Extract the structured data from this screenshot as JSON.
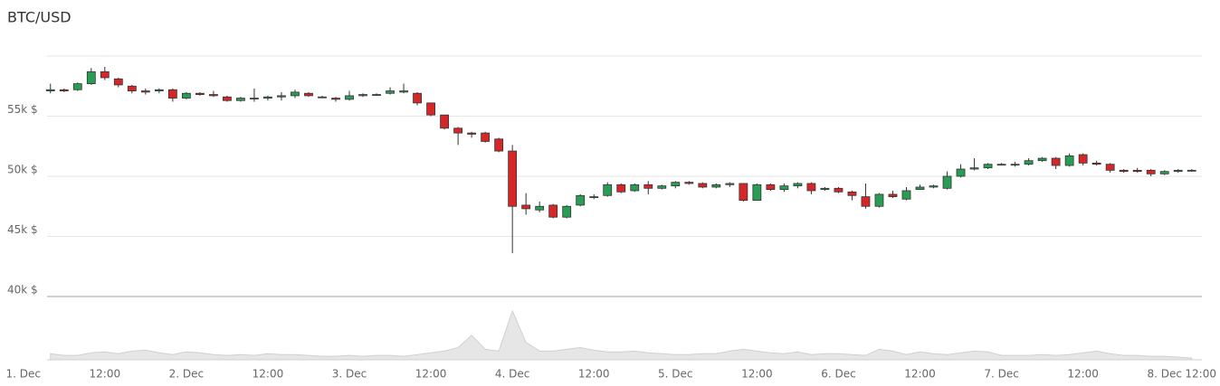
{
  "chart_data": {
    "type": "candlestick",
    "title": "BTC/USD",
    "up_color": "#2a9d55",
    "down_color": "#d62728",
    "grid": true,
    "xlim": [
      3.5,
      173.5
    ],
    "xticks": [
      {
        "value": 0,
        "label": "1. Dec"
      },
      {
        "value": 12,
        "label": "12:00"
      },
      {
        "value": 24,
        "label": "2. Dec"
      },
      {
        "value": 36,
        "label": "12:00"
      },
      {
        "value": 48,
        "label": "3. Dec"
      },
      {
        "value": 60,
        "label": "12:00"
      },
      {
        "value": 72,
        "label": "4. Dec"
      },
      {
        "value": 84,
        "label": "12:00"
      },
      {
        "value": 96,
        "label": "5. Dec"
      },
      {
        "value": 108,
        "label": "12:00"
      },
      {
        "value": 120,
        "label": "6. Dec"
      },
      {
        "value": 132,
        "label": "12:00"
      },
      {
        "value": 144,
        "label": "7. Dec"
      },
      {
        "value": 156,
        "label": "12:00"
      },
      {
        "value": 168,
        "label": "8. Dec"
      },
      {
        "value": 180,
        "label": "12:00"
      }
    ],
    "ylim": [
      40000,
      60000
    ],
    "yticks": [
      {
        "value": 40000,
        "label": "40k $"
      },
      {
        "value": 45000,
        "label": "45k $"
      },
      {
        "value": 50000,
        "label": "50k $"
      },
      {
        "value": 55000,
        "label": "55k $"
      }
    ],
    "volume_ylim": [
      0,
      60
    ],
    "x": [
      4,
      6,
      8,
      10,
      12,
      14,
      16,
      18,
      20,
      22,
      24,
      26,
      28,
      30,
      32,
      34,
      36,
      38,
      40,
      42,
      44,
      46,
      48,
      50,
      52,
      54,
      56,
      58,
      60,
      62,
      64,
      66,
      68,
      70,
      72,
      74,
      76,
      78,
      80,
      82,
      84,
      86,
      88,
      90,
      92,
      94,
      96,
      98,
      100,
      102,
      104,
      106,
      108,
      110,
      112,
      114,
      116,
      118,
      120,
      122,
      124,
      126,
      128,
      130,
      132,
      134,
      136,
      138,
      140,
      142,
      144,
      146,
      148,
      150,
      152,
      154,
      156,
      158,
      160,
      162,
      164,
      166,
      168,
      170,
      172
    ],
    "open": [
      57100,
      57200,
      57200,
      57700,
      58700,
      58100,
      57500,
      57100,
      57100,
      57200,
      56500,
      56900,
      56800,
      56600,
      56300,
      56500,
      56500,
      56600,
      56700,
      56900,
      56600,
      56500,
      56400,
      56700,
      56800,
      56900,
      57000,
      56900,
      56100,
      55100,
      54000,
      53600,
      53600,
      53100,
      52100,
      47600,
      47200,
      47600,
      46600,
      47600,
      48300,
      48400,
      49300,
      48800,
      49300,
      49000,
      49200,
      49500,
      49400,
      49100,
      49300,
      49400,
      48000,
      49300,
      48900,
      49200,
      49400,
      48900,
      49000,
      48700,
      48300,
      47500,
      48500,
      48100,
      48900,
      49100,
      49000,
      50000,
      50600,
      50700,
      51000,
      51000,
      51000,
      51300,
      51500,
      50900,
      51800,
      51100,
      51000,
      50500,
      50500,
      50500,
      50200,
      50400,
      50500
    ],
    "high": [
      57700,
      57300,
      57800,
      59000,
      59100,
      58200,
      57600,
      57300,
      57300,
      57300,
      57000,
      57000,
      57100,
      56700,
      56600,
      57300,
      56700,
      57000,
      57200,
      57000,
      56700,
      56600,
      57100,
      56900,
      56900,
      57400,
      57700,
      57000,
      56100,
      55100,
      54100,
      53700,
      53700,
      53200,
      52600,
      48600,
      47900,
      47700,
      47600,
      48500,
      48500,
      49500,
      49400,
      49400,
      49600,
      49300,
      49600,
      49600,
      49500,
      49400,
      49500,
      49400,
      49400,
      49400,
      49400,
      49500,
      49500,
      49100,
      49100,
      48800,
      49400,
      48600,
      48800,
      49100,
      49300,
      49300,
      50400,
      51000,
      51500,
      51100,
      51100,
      51200,
      51500,
      51600,
      51600,
      51900,
      51900,
      51300,
      51100,
      50600,
      50700,
      50600,
      50500,
      50600,
      50600
    ],
    "low": [
      56900,
      57000,
      57100,
      57600,
      58000,
      57400,
      56900,
      56800,
      56900,
      56200,
      56400,
      56700,
      56600,
      56200,
      56200,
      56200,
      56300,
      56300,
      56500,
      56600,
      56500,
      56200,
      56300,
      56600,
      56700,
      56800,
      56900,
      55900,
      55000,
      53900,
      52600,
      53200,
      52800,
      52000,
      43600,
      46800,
      47000,
      46500,
      46500,
      47500,
      48100,
      48300,
      48600,
      48700,
      48500,
      48900,
      49000,
      49300,
      49000,
      49000,
      49100,
      47900,
      48000,
      48800,
      48700,
      49000,
      48500,
      48800,
      48600,
      48000,
      47300,
      47400,
      48200,
      48000,
      48900,
      49000,
      48900,
      49900,
      50500,
      50600,
      50900,
      50800,
      50900,
      51200,
      50600,
      50800,
      50900,
      50900,
      50300,
      50300,
      50300,
      50000,
      50100,
      50300,
      50400
    ],
    "close": [
      57200,
      57100,
      57700,
      58700,
      58200,
      57600,
      57100,
      57000,
      57200,
      56500,
      56900,
      56800,
      56700,
      56300,
      56500,
      56500,
      56600,
      56700,
      57000,
      56700,
      56600,
      56400,
      56700,
      56800,
      56800,
      57100,
      57100,
      56100,
      55100,
      54000,
      53600,
      53500,
      52900,
      52100,
      47500,
      47300,
      47500,
      46600,
      47500,
      48400,
      48300,
      49300,
      48700,
      49300,
      49000,
      49200,
      49500,
      49400,
      49100,
      49300,
      49400,
      48000,
      49300,
      48900,
      49200,
      49400,
      48800,
      49000,
      48700,
      48400,
      47500,
      48500,
      48300,
      48800,
      49100,
      49200,
      50000,
      50600,
      50700,
      51000,
      51000,
      51000,
      51300,
      51500,
      50900,
      51700,
      51100,
      51000,
      50500,
      50400,
      50400,
      50200,
      50400,
      50500,
      50500
    ],
    "volume": [
      7,
      5,
      5,
      8,
      9,
      7,
      10,
      11,
      8,
      6,
      9,
      8,
      6,
      5,
      6,
      5,
      7,
      6,
      6,
      5,
      4,
      4,
      5,
      4,
      5,
      5,
      4,
      6,
      8,
      10,
      14,
      28,
      12,
      10,
      56,
      20,
      10,
      10,
      12,
      14,
      11,
      9,
      9,
      10,
      8,
      7,
      6,
      6,
      7,
      7,
      10,
      12,
      10,
      8,
      7,
      9,
      6,
      7,
      7,
      6,
      5,
      12,
      10,
      6,
      9,
      7,
      6,
      8,
      10,
      9,
      5,
      5,
      5,
      6,
      5,
      6,
      8,
      10,
      7,
      5,
      5,
      4,
      4,
      3,
      2
    ]
  }
}
